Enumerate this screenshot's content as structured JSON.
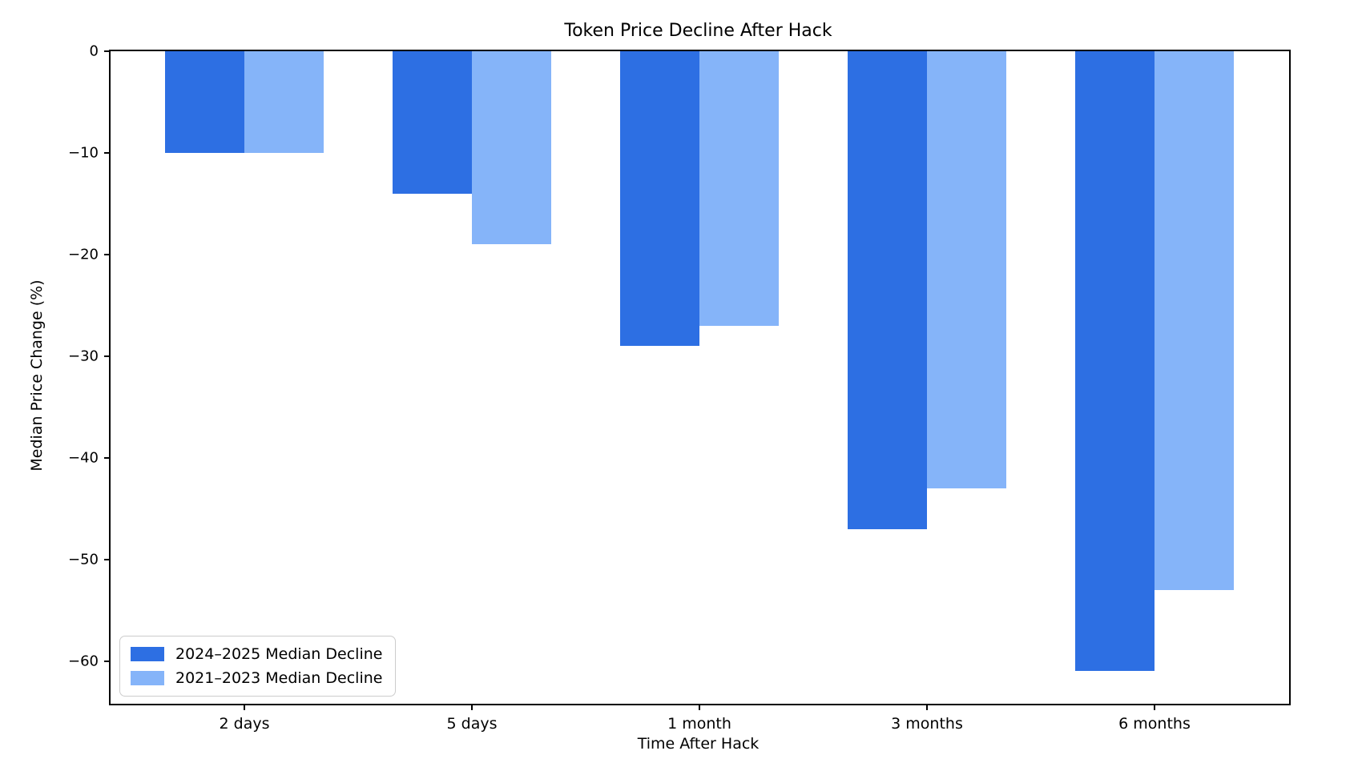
{
  "chart_data": {
    "type": "bar",
    "title": "Token Price Decline After Hack",
    "xlabel": "Time After Hack",
    "ylabel": "Median Price Change (%)",
    "categories": [
      "2 days",
      "5 days",
      "1 month",
      "3 months",
      "6 months"
    ],
    "series": [
      {
        "name": "2024–2025 Median Decline",
        "color": "#2d6fe3",
        "values": [
          -10,
          -14,
          -29,
          -47,
          -61
        ]
      },
      {
        "name": "2021–2023 Median Decline",
        "color": "#85b4f9",
        "values": [
          -10,
          -19,
          -27,
          -43,
          -53
        ]
      }
    ],
    "ylim": [
      -64.2,
      0
    ],
    "yticks": [
      0,
      -10,
      -20,
      -30,
      -40,
      -50,
      -60
    ],
    "grid": false,
    "legend_position": "lower-left",
    "colors": {
      "axis": "#000000",
      "background": "#ffffff"
    }
  }
}
